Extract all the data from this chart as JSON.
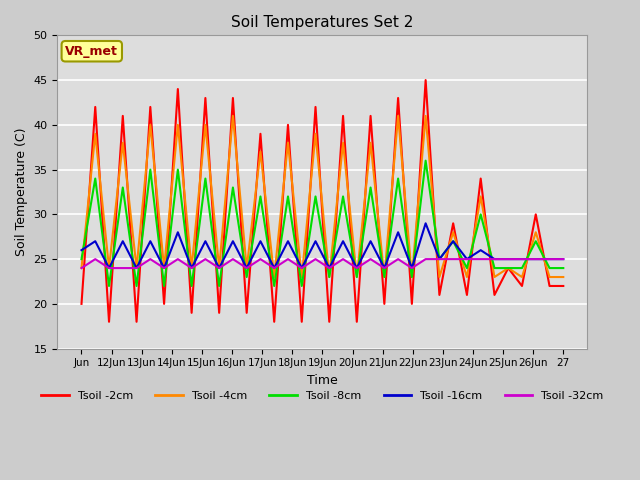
{
  "title": "Soil Temperatures Set 2",
  "xlabel": "Time",
  "ylabel": "Soil Temperature (C)",
  "ylim": [
    15,
    50
  ],
  "yticks": [
    15,
    20,
    25,
    30,
    35,
    40,
    45,
    50
  ],
  "x_labels": [
    "Jun",
    "12Jun",
    "13Jun",
    "14Jun",
    "15Jun",
    "16Jun",
    "17Jun",
    "18Jun",
    "19Jun",
    "20Jun",
    "21Jun",
    "22Jun",
    "23Jun",
    "24Jun",
    "25Jun",
    "26Jun",
    "27"
  ],
  "annotation_text": "VR_met",
  "annotation_bg": "#FFFF99",
  "annotation_border": "#999900",
  "annotation_text_color": "#990000",
  "fig_bg": "#CCCCCC",
  "plot_bg": "#DDDDDD",
  "legend_entries": [
    "Tsoil -2cm",
    "Tsoil -4cm",
    "Tsoil -8cm",
    "Tsoil -16cm",
    "Tsoil -32cm"
  ],
  "colors": [
    "#FF0000",
    "#FF8800",
    "#00DD00",
    "#0000CC",
    "#CC00CC"
  ],
  "line_width": 1.5,
  "series": {
    "tsoil_2cm": [
      20,
      42,
      18,
      41,
      18,
      42,
      20,
      44,
      19,
      43,
      19,
      43,
      19,
      39,
      18,
      40,
      18,
      42,
      18,
      41,
      18,
      41,
      20,
      43,
      20,
      45,
      21,
      29,
      21,
      34,
      21,
      24,
      22,
      30,
      22,
      22
    ],
    "tsoil_4cm": [
      24,
      39,
      24,
      38,
      24,
      40,
      24,
      40,
      24,
      40,
      24,
      41,
      24,
      37,
      23,
      38,
      23,
      39,
      23,
      38,
      23,
      38,
      23,
      41,
      23,
      41,
      23,
      28,
      23,
      32,
      23,
      24,
      23,
      28,
      23,
      23
    ],
    "tsoil_8cm": [
      25,
      34,
      22,
      33,
      22,
      35,
      22,
      35,
      22,
      34,
      22,
      33,
      23,
      32,
      22,
      32,
      22,
      32,
      23,
      32,
      23,
      33,
      23,
      34,
      23,
      36,
      25,
      27,
      24,
      30,
      24,
      24,
      24,
      27,
      24,
      24
    ],
    "tsoil_16cm": [
      26,
      27,
      24,
      27,
      24,
      27,
      24,
      28,
      24,
      27,
      24,
      27,
      24,
      27,
      24,
      27,
      24,
      27,
      24,
      27,
      24,
      27,
      24,
      28,
      24,
      29,
      25,
      27,
      25,
      26,
      25,
      25,
      25,
      25,
      25,
      25
    ],
    "tsoil_32cm": [
      24,
      25,
      24,
      24,
      24,
      25,
      24,
      25,
      24,
      25,
      24,
      25,
      24,
      25,
      24,
      25,
      24,
      25,
      24,
      25,
      24,
      25,
      24,
      25,
      24,
      25,
      25,
      25,
      25,
      25,
      25,
      25,
      25,
      25,
      25,
      25
    ]
  }
}
